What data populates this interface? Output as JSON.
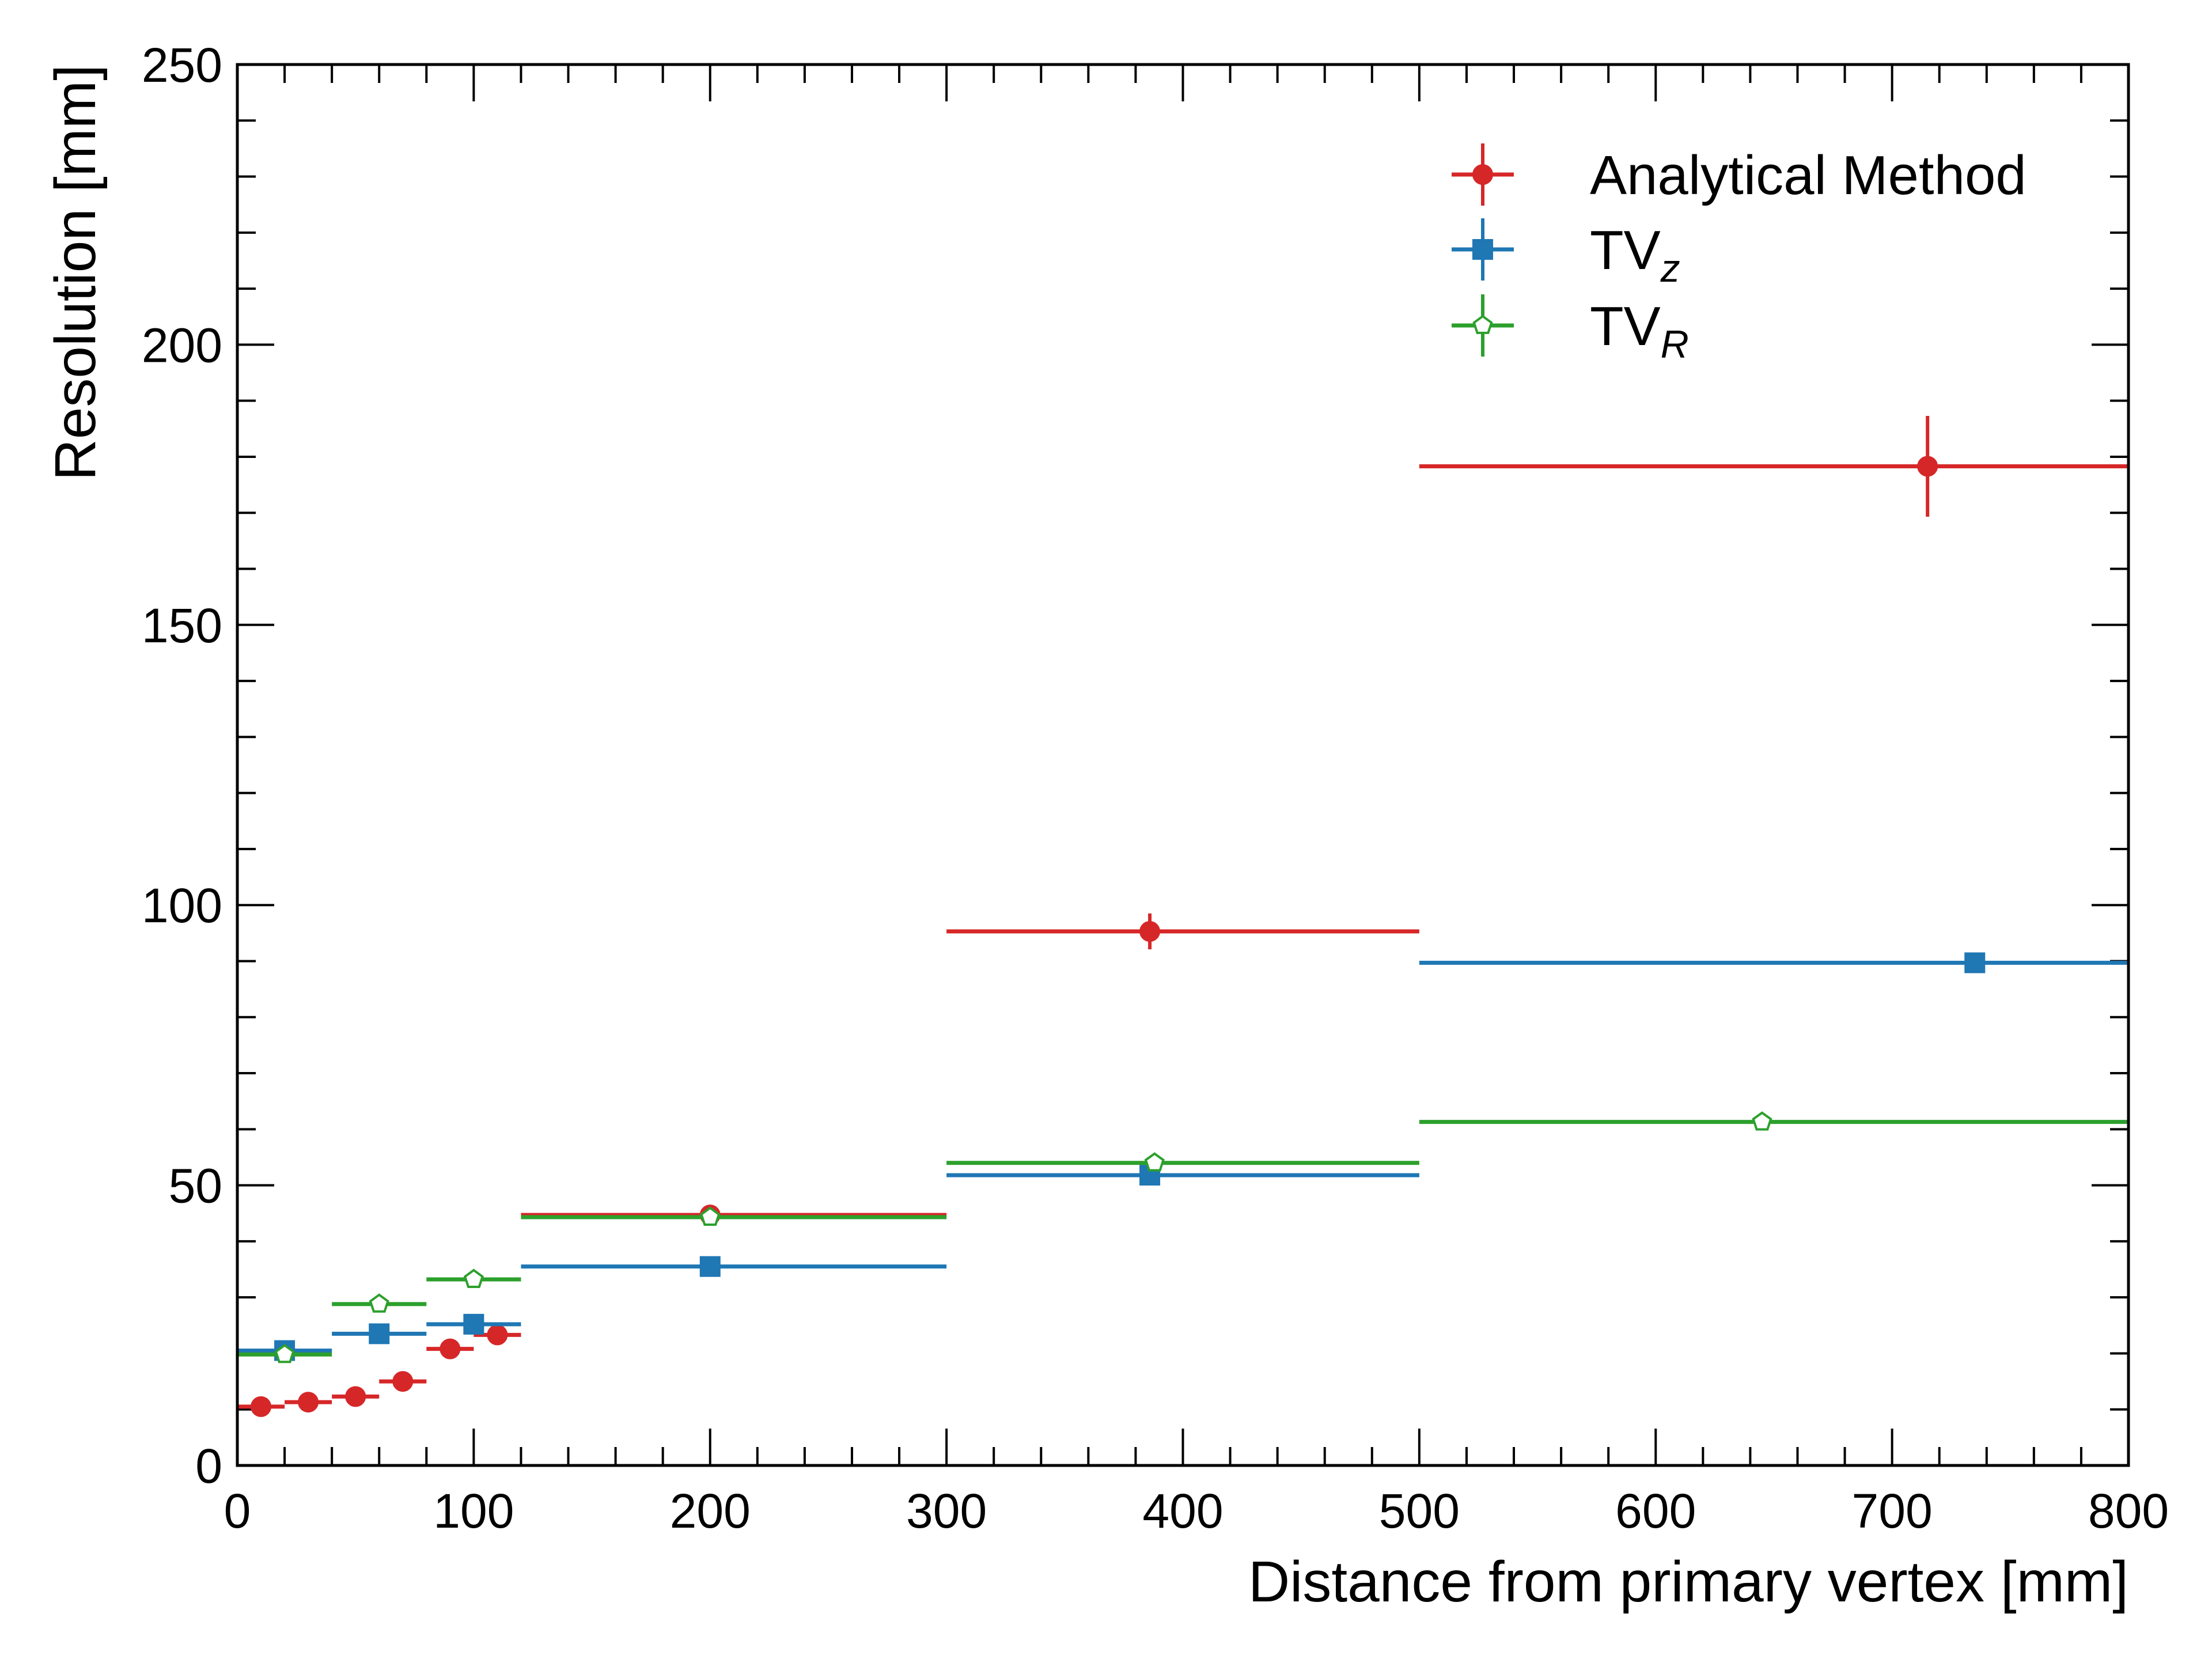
{
  "chart_data": {
    "type": "scatter",
    "title": "",
    "xlabel": "Distance from primary vertex [mm]",
    "ylabel": "Resolution [mm]",
    "xlim": [
      0,
      800
    ],
    "ylim": [
      0,
      250
    ],
    "x_ticks": [
      "0",
      "100",
      "200",
      "300",
      "400",
      "500",
      "600",
      "700",
      "800"
    ],
    "y_ticks": [
      "0",
      "50",
      "100",
      "150",
      "200",
      "250"
    ],
    "grid": false,
    "legend_position": "top-right",
    "series": [
      {
        "name": "Analytical Method",
        "name_main": "Analytical Method",
        "name_sub": "",
        "color": "#d62728",
        "marker": "circle",
        "points": [
          {
            "x": 10,
            "xlo": 0,
            "xhi": 20,
            "y": 10.5,
            "yerr": 0.5
          },
          {
            "x": 30,
            "xlo": 20,
            "xhi": 40,
            "y": 11.3,
            "yerr": 0.5
          },
          {
            "x": 50,
            "xlo": 40,
            "xhi": 60,
            "y": 12.3,
            "yerr": 0.5
          },
          {
            "x": 70,
            "xlo": 60,
            "xhi": 80,
            "y": 15.0,
            "yerr": 0.6
          },
          {
            "x": 90,
            "xlo": 80,
            "xhi": 100,
            "y": 20.8,
            "yerr": 0.7
          },
          {
            "x": 110,
            "xlo": 100,
            "xhi": 120,
            "y": 23.3,
            "yerr": 0.8
          },
          {
            "x": 200,
            "xlo": 120,
            "xhi": 300,
            "y": 44.7,
            "yerr": 1.2
          },
          {
            "x": 386,
            "xlo": 300,
            "xhi": 500,
            "y": 95.3,
            "yerr": 3.2
          },
          {
            "x": 715,
            "xlo": 500,
            "xhi": 800,
            "y": 178.3,
            "yerr": 9.0
          }
        ]
      },
      {
        "name": "TVz",
        "name_main": "TV",
        "name_sub": "z",
        "color": "#1f77b4",
        "marker": "square",
        "points": [
          {
            "x": 20,
            "xlo": 0,
            "xhi": 40,
            "y": 20.5,
            "yerr": 0.6
          },
          {
            "x": 60,
            "xlo": 40,
            "xhi": 80,
            "y": 23.5,
            "yerr": 0.6
          },
          {
            "x": 100,
            "xlo": 80,
            "xhi": 120,
            "y": 25.2,
            "yerr": 0.7
          },
          {
            "x": 200,
            "xlo": 120,
            "xhi": 300,
            "y": 35.5,
            "yerr": 0.8
          },
          {
            "x": 386,
            "xlo": 300,
            "xhi": 500,
            "y": 51.8,
            "yerr": 1.0
          },
          {
            "x": 735,
            "xlo": 500,
            "xhi": 800,
            "y": 89.7,
            "yerr": 1.5
          }
        ]
      },
      {
        "name": "TVR",
        "name_main": "TV",
        "name_sub": "R",
        "color": "#2ca02c",
        "marker": "open-pentagon",
        "points": [
          {
            "x": 20,
            "xlo": 0,
            "xhi": 40,
            "y": 19.8,
            "yerr": 0.6
          },
          {
            "x": 60,
            "xlo": 40,
            "xhi": 80,
            "y": 28.8,
            "yerr": 0.7
          },
          {
            "x": 100,
            "xlo": 80,
            "xhi": 120,
            "y": 33.2,
            "yerr": 0.8
          },
          {
            "x": 200,
            "xlo": 120,
            "xhi": 300,
            "y": 44.3,
            "yerr": 0.9
          },
          {
            "x": 388,
            "xlo": 300,
            "xhi": 500,
            "y": 54.0,
            "yerr": 1.0
          },
          {
            "x": 645,
            "xlo": 500,
            "xhi": 800,
            "y": 61.3,
            "yerr": 1.2
          }
        ]
      }
    ]
  }
}
